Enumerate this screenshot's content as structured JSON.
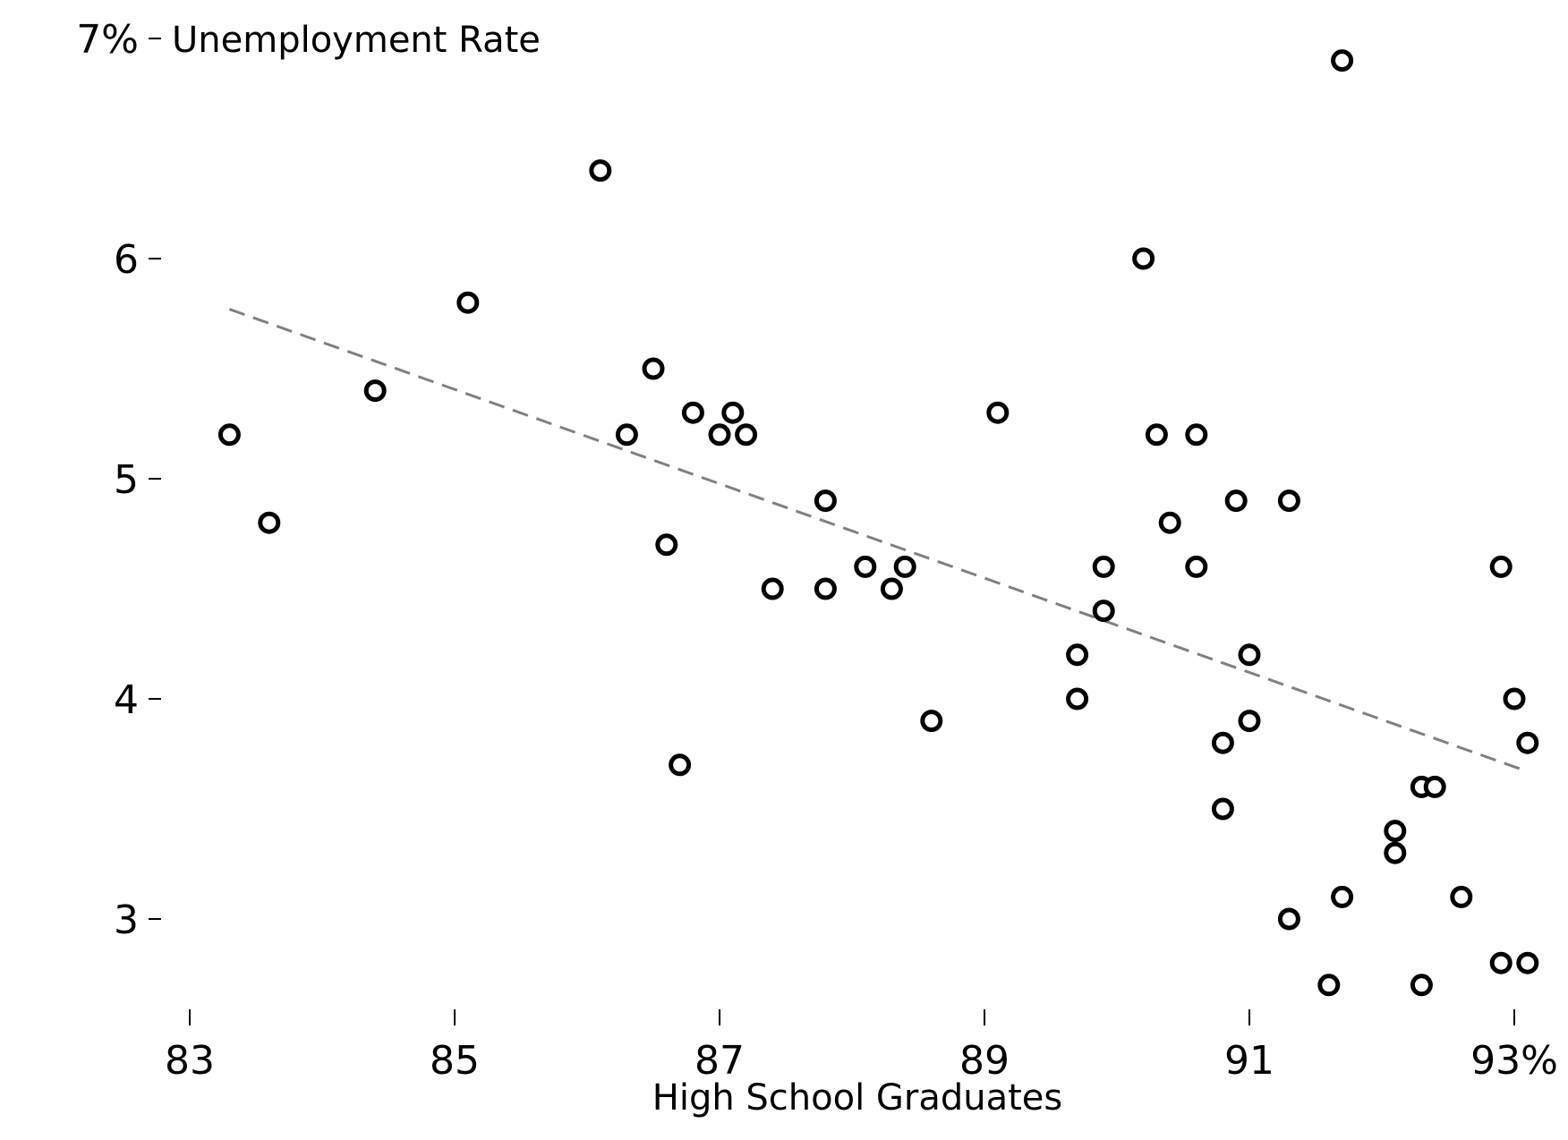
{
  "chart_data": {
    "type": "scatter",
    "title": "",
    "xlabel": "High School Graduates",
    "ylabel": "Unemployment Rate",
    "xlim": [
      82.9,
      93.2
    ],
    "ylim": [
      2.55,
      7.05
    ],
    "x_ticks": [
      83,
      85,
      87,
      89,
      91,
      93
    ],
    "x_tick_labels": [
      "83",
      "85",
      "87",
      "89",
      "91",
      "93%"
    ],
    "y_ticks": [
      3,
      4,
      5,
      6,
      7
    ],
    "y_tick_labels": [
      "3",
      "4",
      "5",
      "6",
      "7%"
    ],
    "grid": false,
    "legend": "none",
    "colors": {
      "points": "#000000",
      "trendline": "#808080"
    },
    "trendline": {
      "style": "dashed",
      "from": [
        83.3,
        5.77
      ],
      "to": [
        93.1,
        3.67
      ]
    },
    "points": [
      [
        83.3,
        5.2
      ],
      [
        83.6,
        4.8
      ],
      [
        84.4,
        5.4
      ],
      [
        85.1,
        5.8
      ],
      [
        86.1,
        6.4
      ],
      [
        86.3,
        5.2
      ],
      [
        86.5,
        5.5
      ],
      [
        86.6,
        4.7
      ],
      [
        86.7,
        3.7
      ],
      [
        86.8,
        5.3
      ],
      [
        87.0,
        5.2
      ],
      [
        87.1,
        5.3
      ],
      [
        87.2,
        5.2
      ],
      [
        87.4,
        4.5
      ],
      [
        87.8,
        4.9
      ],
      [
        87.8,
        4.5
      ],
      [
        88.1,
        4.6
      ],
      [
        88.3,
        4.5
      ],
      [
        88.4,
        4.6
      ],
      [
        88.6,
        3.9
      ],
      [
        89.1,
        5.3
      ],
      [
        89.7,
        4.2
      ],
      [
        89.7,
        4.0
      ],
      [
        89.9,
        4.6
      ],
      [
        89.9,
        4.4
      ],
      [
        90.2,
        6.0
      ],
      [
        90.3,
        5.2
      ],
      [
        90.4,
        4.8
      ],
      [
        90.6,
        5.2
      ],
      [
        90.6,
        4.6
      ],
      [
        90.8,
        3.8
      ],
      [
        90.8,
        3.5
      ],
      [
        90.9,
        4.9
      ],
      [
        91.0,
        4.2
      ],
      [
        91.0,
        3.9
      ],
      [
        91.3,
        4.9
      ],
      [
        91.3,
        3.0
      ],
      [
        91.6,
        2.7
      ],
      [
        91.7,
        6.9
      ],
      [
        91.7,
        3.1
      ],
      [
        92.1,
        3.4
      ],
      [
        92.1,
        3.3
      ],
      [
        92.3,
        3.6
      ],
      [
        92.3,
        2.7
      ],
      [
        92.4,
        3.6
      ],
      [
        92.6,
        3.1
      ],
      [
        92.9,
        4.6
      ],
      [
        92.9,
        2.8
      ],
      [
        93.0,
        4.0
      ],
      [
        93.1,
        3.8
      ],
      [
        93.1,
        2.8
      ]
    ]
  }
}
